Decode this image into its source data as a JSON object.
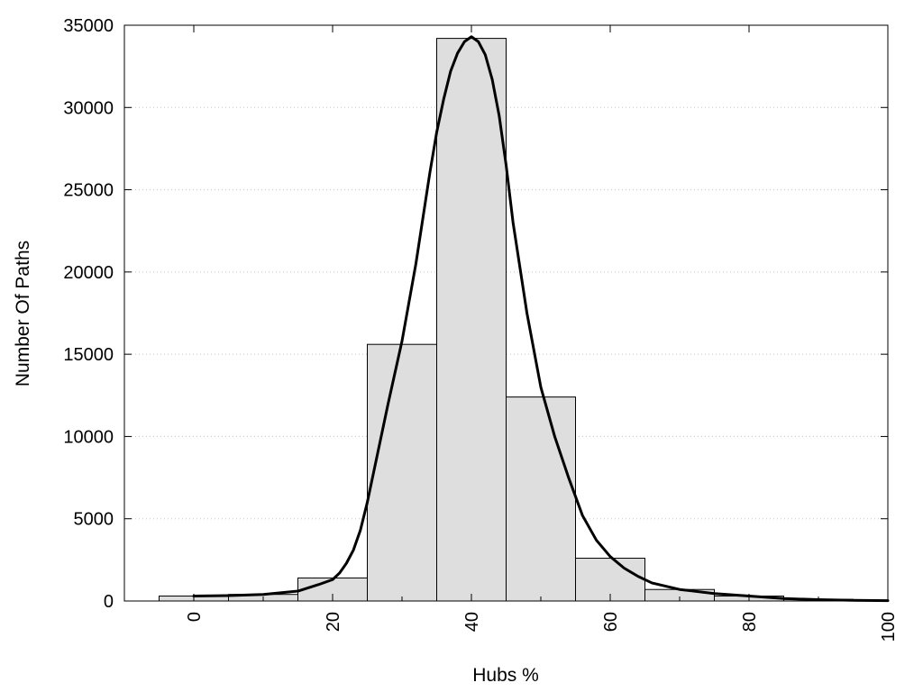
{
  "chart_data": {
    "type": "bar",
    "title": "",
    "xlabel": "Hubs %",
    "ylabel": "Number Of Paths",
    "xlim": [
      -10,
      100
    ],
    "ylim": [
      0,
      35000
    ],
    "grid": true,
    "legend": "none",
    "bin_width": 10,
    "bins": [
      {
        "center": 0,
        "value": 300
      },
      {
        "center": 10,
        "value": 400
      },
      {
        "center": 20,
        "value": 1400
      },
      {
        "center": 30,
        "value": 15600
      },
      {
        "center": 40,
        "value": 34200
      },
      {
        "center": 50,
        "value": 12400
      },
      {
        "center": 60,
        "value": 2600
      },
      {
        "center": 70,
        "value": 700
      },
      {
        "center": 80,
        "value": 300
      },
      {
        "center": 90,
        "value": 100
      }
    ],
    "x_ticks": [
      "0",
      "20",
      "40",
      "60",
      "80",
      "100"
    ],
    "y_ticks": [
      "0",
      "5000",
      "10000",
      "15000",
      "20000",
      "25000",
      "30000",
      "35000"
    ],
    "curve": {
      "x": [
        0,
        5,
        10,
        15,
        18,
        20,
        21,
        22,
        23,
        24,
        25,
        26,
        28,
        30,
        32,
        34,
        35,
        36,
        37,
        38,
        39,
        40,
        41,
        42,
        43,
        44,
        45,
        46,
        48,
        50,
        52,
        54,
        56,
        58,
        60,
        62,
        64,
        66,
        68,
        70,
        75,
        80,
        85,
        90,
        95,
        100
      ],
      "y": [
        300,
        330,
        400,
        600,
        1000,
        1300,
        1700,
        2300,
        3100,
        4300,
        6000,
        8000,
        12000,
        15800,
        20500,
        26000,
        28500,
        30500,
        32200,
        33300,
        34000,
        34300,
        34000,
        33200,
        31700,
        29500,
        26500,
        23000,
        17500,
        13000,
        10000,
        7500,
        5200,
        3700,
        2700,
        2000,
        1500,
        1100,
        900,
        700,
        450,
        300,
        150,
        80,
        40,
        20
      ]
    }
  }
}
